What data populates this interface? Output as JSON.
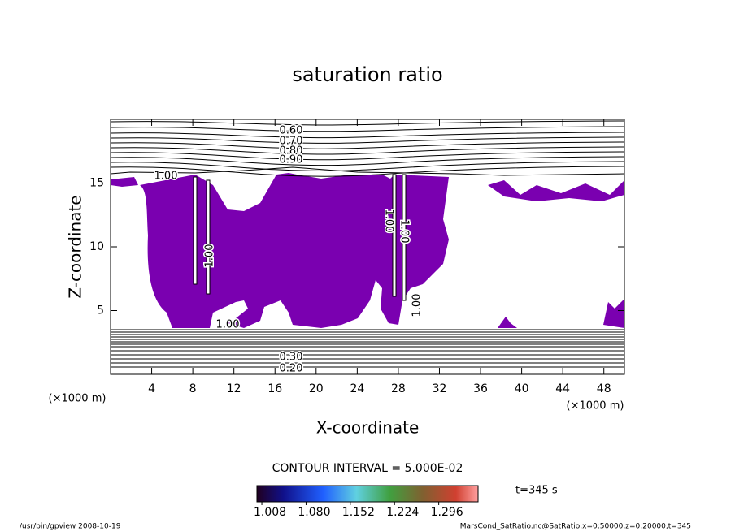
{
  "chart_data": {
    "type": "contour",
    "title": "saturation ratio",
    "x_label": "X-coordinate",
    "y_label": "Z-coordinate",
    "x_unit": "(×1000 m)",
    "y_unit": "(×1000 m)",
    "xlim": [
      0,
      50
    ],
    "xticks": [
      4,
      8,
      12,
      16,
      20,
      24,
      28,
      32,
      36,
      40,
      44,
      48
    ],
    "ylim": [
      0,
      20
    ],
    "yticks": [
      5,
      10,
      15
    ],
    "fill_color": "#7a00b0",
    "contour_labels": [
      {
        "value": 0.6,
        "label": "0.60"
      },
      {
        "value": 0.7,
        "label": "0.70"
      },
      {
        "value": 0.8,
        "label": "0.80"
      },
      {
        "value": 0.9,
        "label": "0.90"
      },
      {
        "value": 1.0,
        "label": "1.00"
      },
      {
        "value": 1.0,
        "label": "1.00"
      },
      {
        "value": 1.0,
        "label": "1.00"
      },
      {
        "value": 1.0,
        "label": "1.00"
      },
      {
        "value": 1.0,
        "label": "1.00"
      },
      {
        "value": 1.0,
        "label": "1.00"
      },
      {
        "value": 0.3,
        "label": "0.30"
      },
      {
        "value": 0.2,
        "label": "0.20"
      }
    ],
    "contour_interval": "CONTOUR INTERVAL = 5.000E-02",
    "time_label": "t=345 s",
    "colorbar": {
      "lim": [
        1.0,
        1.36
      ],
      "ticks": [
        {
          "value": 1.008,
          "label": "1.008"
        },
        {
          "value": 1.08,
          "label": "1.080"
        },
        {
          "value": 1.152,
          "label": "1.152"
        },
        {
          "value": 1.224,
          "label": "1.224"
        },
        {
          "value": 1.296,
          "label": "1.296"
        }
      ]
    },
    "footer_left": "/usr/bin/gpview  2008-10-19",
    "footer_right": "MarsCond_SatRatio.nc@SatRatio,x=0:50000,z=0:20000,t=345"
  }
}
